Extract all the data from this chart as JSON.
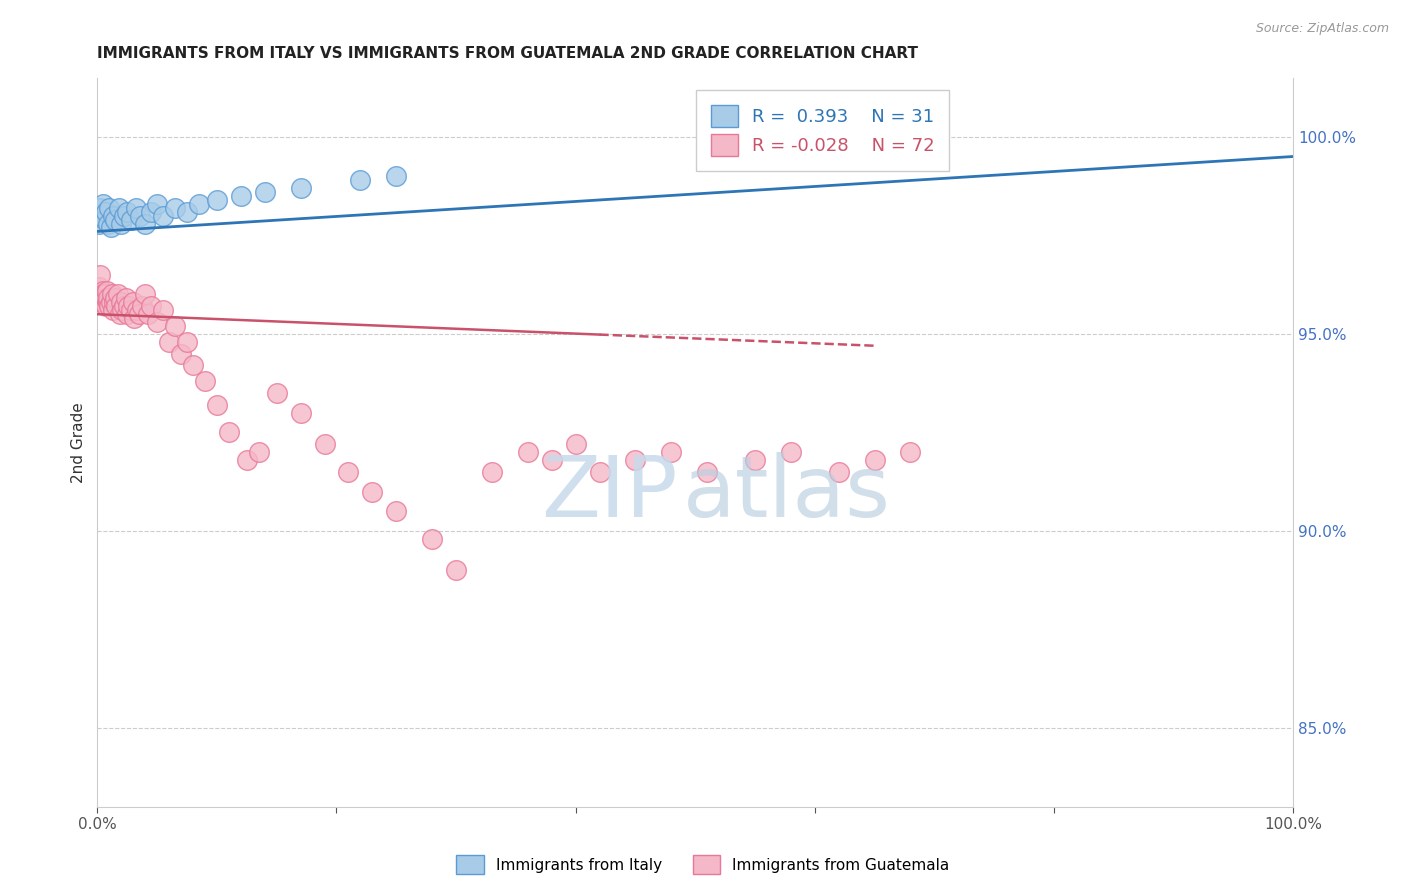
{
  "title": "IMMIGRANTS FROM ITALY VS IMMIGRANTS FROM GUATEMALA 2ND GRADE CORRELATION CHART",
  "source_text": "Source: ZipAtlas.com",
  "ylabel": "2nd Grade",
  "xlim": [
    0,
    100
  ],
  "ylim": [
    83.0,
    101.5
  ],
  "right_y_ticks": [
    85.0,
    90.0,
    95.0,
    100.0
  ],
  "right_y_tick_labels": [
    "85.0%",
    "90.0%",
    "95.0%",
    "100.0%"
  ],
  "italy_color": "#a8cce8",
  "guatemala_color": "#f5b8c8",
  "italy_edge_color": "#5b9bd5",
  "guatemala_edge_color": "#e87898",
  "italy_line_color": "#2e75b6",
  "guatemala_line_color": "#c9526a",
  "R_italy": 0.393,
  "N_italy": 31,
  "R_guatemala": -0.028,
  "N_guatemala": 72,
  "legend_label_italy": "Immigrants from Italy",
  "legend_label_guatemala": "Immigrants from Guatemala",
  "italy_x": [
    0.15,
    0.25,
    0.35,
    0.5,
    0.65,
    0.75,
    0.9,
    1.0,
    1.1,
    1.3,
    1.5,
    1.8,
    2.0,
    2.2,
    2.5,
    2.8,
    3.2,
    3.6,
    4.0,
    4.5,
    5.0,
    5.5,
    6.5,
    7.5,
    8.5,
    10.0,
    12.0,
    14.0,
    17.0,
    22.0,
    25.0
  ],
  "italy_y": [
    97.8,
    98.2,
    98.0,
    98.3,
    97.9,
    98.1,
    97.8,
    98.2,
    97.7,
    98.0,
    97.9,
    98.2,
    97.8,
    98.0,
    98.1,
    97.9,
    98.2,
    98.0,
    97.8,
    98.1,
    98.3,
    98.0,
    98.2,
    98.1,
    98.3,
    98.4,
    98.5,
    98.6,
    98.7,
    98.9,
    99.0
  ],
  "guatemala_x": [
    0.1,
    0.2,
    0.3,
    0.35,
    0.4,
    0.45,
    0.5,
    0.55,
    0.6,
    0.65,
    0.7,
    0.75,
    0.8,
    0.85,
    0.9,
    1.0,
    1.1,
    1.2,
    1.3,
    1.4,
    1.5,
    1.6,
    1.7,
    1.9,
    2.0,
    2.1,
    2.2,
    2.4,
    2.5,
    2.6,
    2.8,
    3.0,
    3.1,
    3.3,
    3.5,
    3.7,
    4.0,
    4.2,
    4.5,
    5.0,
    5.5,
    6.0,
    6.5,
    7.0,
    7.5,
    8.0,
    9.0,
    10.0,
    11.0,
    12.5,
    13.5,
    15.0,
    17.0,
    19.0,
    21.0,
    23.0,
    25.0,
    28.0,
    30.0,
    33.0,
    36.0,
    38.0,
    40.0,
    42.0,
    45.0,
    48.0,
    51.0,
    55.0,
    58.0,
    62.0,
    65.0,
    68.0
  ],
  "guatemala_y": [
    96.2,
    96.5,
    95.8,
    96.0,
    95.9,
    96.1,
    96.0,
    95.8,
    95.9,
    96.0,
    95.7,
    95.9,
    96.1,
    95.8,
    95.9,
    95.7,
    95.8,
    96.0,
    95.6,
    95.8,
    95.9,
    95.7,
    96.0,
    95.5,
    95.8,
    95.6,
    95.7,
    95.9,
    95.5,
    95.7,
    95.6,
    95.8,
    95.4,
    95.6,
    95.5,
    95.7,
    96.0,
    95.5,
    95.7,
    95.3,
    95.6,
    94.8,
    95.2,
    94.5,
    94.8,
    94.2,
    93.8,
    93.2,
    92.5,
    91.8,
    92.0,
    93.5,
    93.0,
    92.2,
    91.5,
    91.0,
    90.5,
    89.8,
    89.0,
    91.5,
    92.0,
    91.8,
    92.2,
    91.5,
    91.8,
    92.0,
    91.5,
    91.8,
    92.0,
    91.5,
    91.8,
    92.0
  ],
  "italy_trend_x": [
    0,
    100
  ],
  "italy_trend_y": [
    97.6,
    99.5
  ],
  "guatemala_trend_x": [
    0,
    65
  ],
  "guatemala_trend_solid_end": 42,
  "guatemala_trend_y_start": 95.5,
  "guatemala_trend_y_end": 94.7
}
